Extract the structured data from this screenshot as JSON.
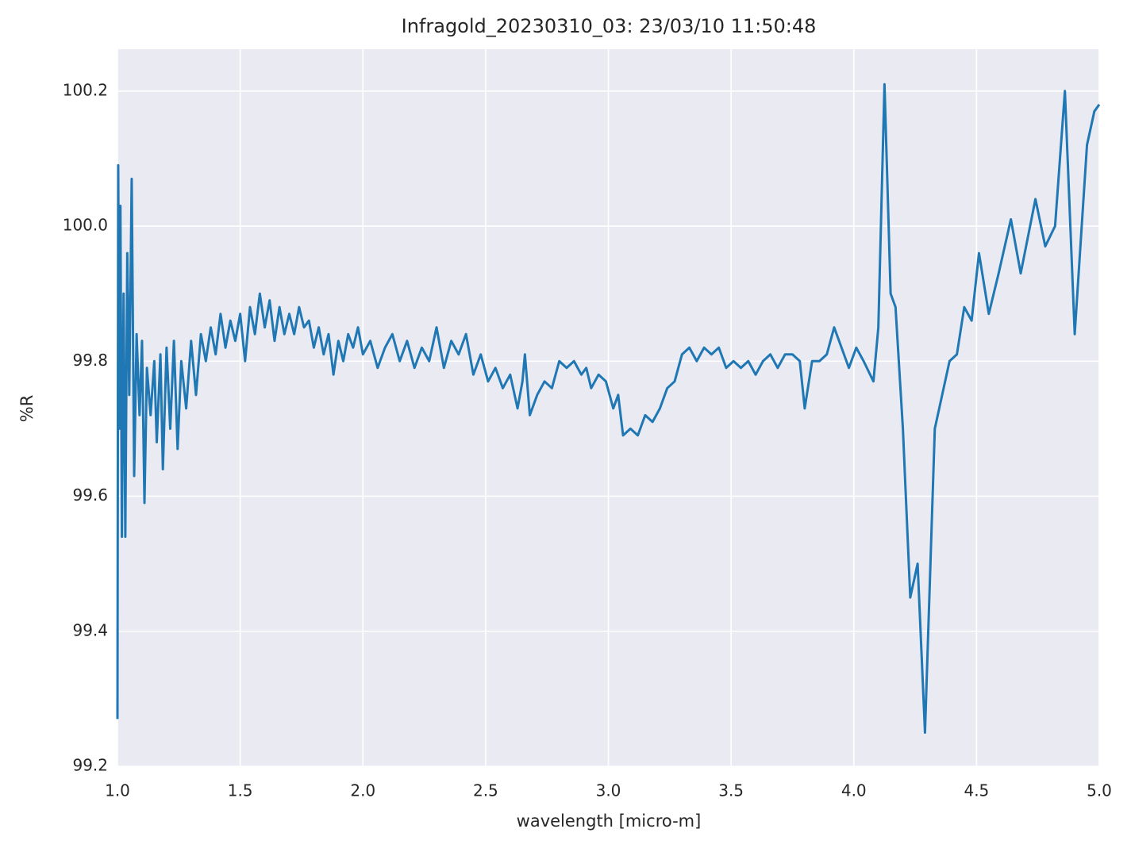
{
  "chart_data": {
    "type": "line",
    "title": "Infragold_20230310_03:  23/03/10 11:50:48",
    "xlabel": "wavelength [micro-m]",
    "ylabel": "%R",
    "color": "#1f77b4",
    "grid": true,
    "xlim": [
      1,
      5
    ],
    "ylim": [
      99.2,
      100.262
    ],
    "xticks": [
      {
        "value": 1,
        "label": "1.0"
      },
      1.5,
      {
        "value": 2,
        "label": "2.0"
      },
      2.5,
      {
        "value": 3,
        "label": "3.0"
      },
      3.5,
      {
        "value": 4,
        "label": "4.0"
      },
      4.5,
      {
        "value": 5,
        "label": "5.0"
      }
    ],
    "yticks": [
      99.2,
      99.4,
      99.6,
      99.8,
      {
        "value": 100,
        "label": "100.0"
      },
      100.2
    ],
    "x": [
      1.0,
      1.003,
      1.008,
      1.012,
      1.018,
      1.025,
      1.032,
      1.04,
      1.048,
      1.058,
      1.068,
      1.078,
      1.09,
      1.1,
      1.11,
      1.12,
      1.135,
      1.15,
      1.16,
      1.175,
      1.185,
      1.2,
      1.215,
      1.23,
      1.245,
      1.26,
      1.28,
      1.3,
      1.32,
      1.34,
      1.36,
      1.38,
      1.4,
      1.42,
      1.44,
      1.46,
      1.48,
      1.5,
      1.52,
      1.54,
      1.56,
      1.58,
      1.6,
      1.62,
      1.64,
      1.66,
      1.68,
      1.7,
      1.72,
      1.74,
      1.76,
      1.78,
      1.8,
      1.82,
      1.84,
      1.86,
      1.88,
      1.9,
      1.92,
      1.94,
      1.96,
      1.98,
      2.0,
      2.03,
      2.06,
      2.09,
      2.12,
      2.15,
      2.18,
      2.21,
      2.24,
      2.27,
      2.3,
      2.33,
      2.36,
      2.39,
      2.42,
      2.45,
      2.48,
      2.51,
      2.54,
      2.57,
      2.6,
      2.63,
      2.65,
      2.66,
      2.68,
      2.71,
      2.74,
      2.77,
      2.8,
      2.83,
      2.86,
      2.89,
      2.91,
      2.93,
      2.96,
      2.99,
      3.02,
      3.04,
      3.06,
      3.09,
      3.12,
      3.15,
      3.18,
      3.21,
      3.24,
      3.27,
      3.3,
      3.33,
      3.36,
      3.39,
      3.42,
      3.45,
      3.48,
      3.51,
      3.54,
      3.57,
      3.6,
      3.63,
      3.66,
      3.69,
      3.72,
      3.75,
      3.78,
      3.8,
      3.83,
      3.86,
      3.89,
      3.92,
      3.95,
      3.98,
      4.01,
      4.04,
      4.08,
      4.1,
      4.125,
      4.15,
      4.17,
      4.2,
      4.23,
      4.26,
      4.29,
      4.33,
      4.36,
      4.39,
      4.42,
      4.45,
      4.48,
      4.51,
      4.55,
      4.59,
      4.64,
      4.68,
      4.74,
      4.78,
      4.82,
      4.86,
      4.9,
      4.95,
      4.98,
      5.0
    ],
    "values": [
      99.27,
      100.09,
      99.7,
      100.03,
      99.54,
      99.9,
      99.54,
      99.96,
      99.75,
      100.07,
      99.63,
      99.84,
      99.72,
      99.83,
      99.59,
      99.79,
      99.72,
      99.8,
      99.68,
      99.81,
      99.64,
      99.82,
      99.7,
      99.83,
      99.67,
      99.8,
      99.73,
      99.83,
      99.75,
      99.84,
      99.8,
      99.85,
      99.81,
      99.87,
      99.82,
      99.86,
      99.83,
      99.87,
      99.8,
      99.88,
      99.84,
      99.9,
      99.85,
      99.89,
      99.83,
      99.88,
      99.84,
      99.87,
      99.84,
      99.88,
      99.85,
      99.86,
      99.82,
      99.85,
      99.81,
      99.84,
      99.78,
      99.83,
      99.8,
      99.84,
      99.82,
      99.85,
      99.81,
      99.83,
      99.79,
      99.82,
      99.84,
      99.8,
      99.83,
      99.79,
      99.82,
      99.8,
      99.85,
      99.79,
      99.83,
      99.81,
      99.84,
      99.78,
      99.81,
      99.77,
      99.79,
      99.76,
      99.78,
      99.73,
      99.77,
      99.81,
      99.72,
      99.75,
      99.77,
      99.76,
      99.8,
      99.79,
      99.8,
      99.78,
      99.79,
      99.76,
      99.78,
      99.77,
      99.73,
      99.75,
      99.69,
      99.7,
      99.69,
      99.72,
      99.71,
      99.73,
      99.76,
      99.77,
      99.81,
      99.82,
      99.8,
      99.82,
      99.81,
      99.82,
      99.79,
      99.8,
      99.79,
      99.8,
      99.78,
      99.8,
      99.81,
      99.79,
      99.81,
      99.81,
      99.8,
      99.73,
      99.8,
      99.8,
      99.81,
      99.85,
      99.82,
      99.79,
      99.82,
      99.8,
      99.77,
      99.85,
      100.21,
      99.9,
      99.88,
      99.7,
      99.45,
      99.5,
      99.25,
      99.7,
      99.75,
      99.8,
      99.81,
      99.88,
      99.86,
      99.96,
      99.87,
      99.93,
      100.01,
      99.93,
      100.04,
      99.97,
      100.0,
      100.2,
      99.84,
      100.12,
      100.17,
      100.18
    ]
  }
}
